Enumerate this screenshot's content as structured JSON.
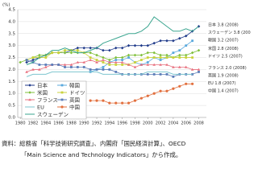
{
  "chart_data": {
    "type": "line",
    "y_unit": "(%)",
    "x": [
      1980,
      1981,
      1982,
      1983,
      1984,
      1985,
      1986,
      1987,
      1988,
      1989,
      1990,
      1991,
      1992,
      1993,
      1994,
      1995,
      1996,
      1997,
      1998,
      1999,
      2000,
      2001,
      2002,
      2003,
      2004,
      2005,
      2006,
      2007,
      2008
    ],
    "xlim": [
      1979.6,
      2009.2
    ],
    "xticks": [
      1980,
      1982,
      1984,
      1986,
      1988,
      1990,
      1992,
      1994,
      1996,
      1998,
      2000,
      2002,
      2004,
      2006,
      2008
    ],
    "ylim": [
      0,
      4.5
    ],
    "yticks": [
      {
        "value": 0,
        "label": "0.0"
      },
      0.5,
      {
        "value": 1,
        "label": "1.0"
      },
      1.5,
      {
        "value": 2,
        "label": "2.0"
      },
      2.5,
      {
        "value": 3,
        "label": "3.0"
      },
      3.5,
      {
        "value": 4,
        "label": "4.0"
      },
      4.5
    ],
    "grid": true,
    "series": [
      {
        "name": "日本",
        "color": "#1f3a8a",
        "marker": "diamond",
        "end_label": "日本 3.8 (2008)",
        "values": [
          null,
          2.3,
          2.4,
          2.5,
          2.6,
          2.7,
          2.7,
          2.7,
          2.8,
          2.9,
          2.9,
          2.9,
          2.9,
          2.8,
          2.8,
          2.9,
          2.9,
          3.0,
          3.0,
          3.0,
          3.0,
          3.1,
          3.2,
          3.2,
          3.2,
          3.3,
          3.4,
          3.6,
          3.8
        ]
      },
      {
        "name": "韓国",
        "color": "#5aa9dd",
        "marker": "square",
        "end_label": "韓国 3.2 (2007)",
        "values": [
          null,
          null,
          null,
          null,
          null,
          null,
          null,
          null,
          null,
          null,
          null,
          1.9,
          2.0,
          2.1,
          2.3,
          2.4,
          2.4,
          2.5,
          2.3,
          2.2,
          2.3,
          2.5,
          2.4,
          2.5,
          2.7,
          2.8,
          3.0,
          3.2,
          null
        ]
      },
      {
        "name": "米国",
        "color": "#7fbf3a",
        "marker": "diamond",
        "end_label": "米国 2.8 (2008)",
        "values": [
          2.3,
          2.4,
          2.5,
          2.6,
          2.6,
          2.7,
          2.7,
          2.7,
          2.7,
          2.7,
          2.7,
          2.7,
          2.6,
          2.5,
          2.4,
          2.5,
          2.5,
          2.6,
          2.6,
          2.6,
          2.7,
          2.7,
          2.6,
          2.6,
          2.5,
          2.6,
          2.6,
          2.7,
          2.8
        ]
      },
      {
        "name": "ドイツ",
        "color": "#c9d23c",
        "marker": "square",
        "end_label": "ドイツ 2.5 (2007)",
        "values": [
          null,
          2.4,
          2.5,
          2.5,
          2.5,
          2.7,
          2.7,
          2.8,
          2.8,
          2.8,
          2.7,
          2.5,
          2.4,
          2.3,
          2.2,
          2.2,
          2.2,
          2.2,
          2.3,
          2.4,
          2.5,
          2.5,
          2.5,
          2.5,
          2.5,
          2.5,
          2.5,
          2.5,
          null
        ]
      },
      {
        "name": "フランス",
        "color": "#e8707f",
        "marker": "triangle",
        "end_label": "フランス 2.0 (2008)",
        "values": [
          null,
          1.9,
          2.0,
          2.0,
          2.1,
          2.2,
          2.2,
          2.2,
          2.2,
          2.3,
          2.3,
          2.4,
          2.3,
          2.4,
          2.3,
          2.3,
          2.3,
          2.2,
          2.1,
          2.2,
          2.2,
          2.2,
          2.2,
          2.2,
          2.1,
          2.1,
          2.1,
          2.0,
          2.0
        ]
      },
      {
        "name": "英国",
        "color": "#5b7db8",
        "marker": "square",
        "end_label": "英国 1.9 (2008)",
        "values": [
          null,
          2.4,
          2.3,
          2.2,
          2.2,
          2.2,
          2.2,
          2.1,
          2.1,
          2.1,
          2.1,
          2.0,
          2.0,
          2.0,
          2.0,
          1.9,
          1.8,
          1.8,
          1.8,
          1.8,
          1.8,
          1.8,
          1.8,
          1.8,
          1.7,
          1.8,
          1.8,
          1.8,
          1.9
        ]
      },
      {
        "name": "EU",
        "color": "#7ec6cf",
        "marker": null,
        "end_label": "EU 1.8 (2007)",
        "values": [
          null,
          1.7,
          1.8,
          1.8,
          1.8,
          1.9,
          1.9,
          1.9,
          1.9,
          1.9,
          1.9,
          1.9,
          1.9,
          1.8,
          1.8,
          1.8,
          1.8,
          1.8,
          1.8,
          1.8,
          1.9,
          1.9,
          1.9,
          1.9,
          1.8,
          1.8,
          1.8,
          1.8,
          null
        ]
      },
      {
        "name": "中国",
        "color": "#e2703f",
        "marker": "circle",
        "end_label": "中国 1.4 (2007)",
        "values": [
          null,
          null,
          null,
          null,
          null,
          null,
          null,
          null,
          null,
          null,
          null,
          0.7,
          0.7,
          0.7,
          0.6,
          0.6,
          0.6,
          0.6,
          0.7,
          0.8,
          0.9,
          1.0,
          1.1,
          1.1,
          1.2,
          1.3,
          1.4,
          1.4,
          null
        ]
      },
      {
        "name": "スウェーデン",
        "color": "#3aa58f",
        "marker": null,
        "end_label": "スウェーデン 3.8 (2008)",
        "values": [
          null,
          2.2,
          2.3,
          2.5,
          2.6,
          2.8,
          2.8,
          2.9,
          2.8,
          2.7,
          2.7,
          2.8,
          2.9,
          3.1,
          3.2,
          3.3,
          3.4,
          3.5,
          3.5,
          3.6,
          3.8,
          4.2,
          4.0,
          3.8,
          3.6,
          3.6,
          3.7,
          3.6,
          3.8
        ]
      }
    ]
  },
  "source": [
    "資料：総務省「科学技術研究調査」、内閣府「国民経済計算」、OECD",
    "「Main Science and Technology Indicators」から作成。"
  ]
}
